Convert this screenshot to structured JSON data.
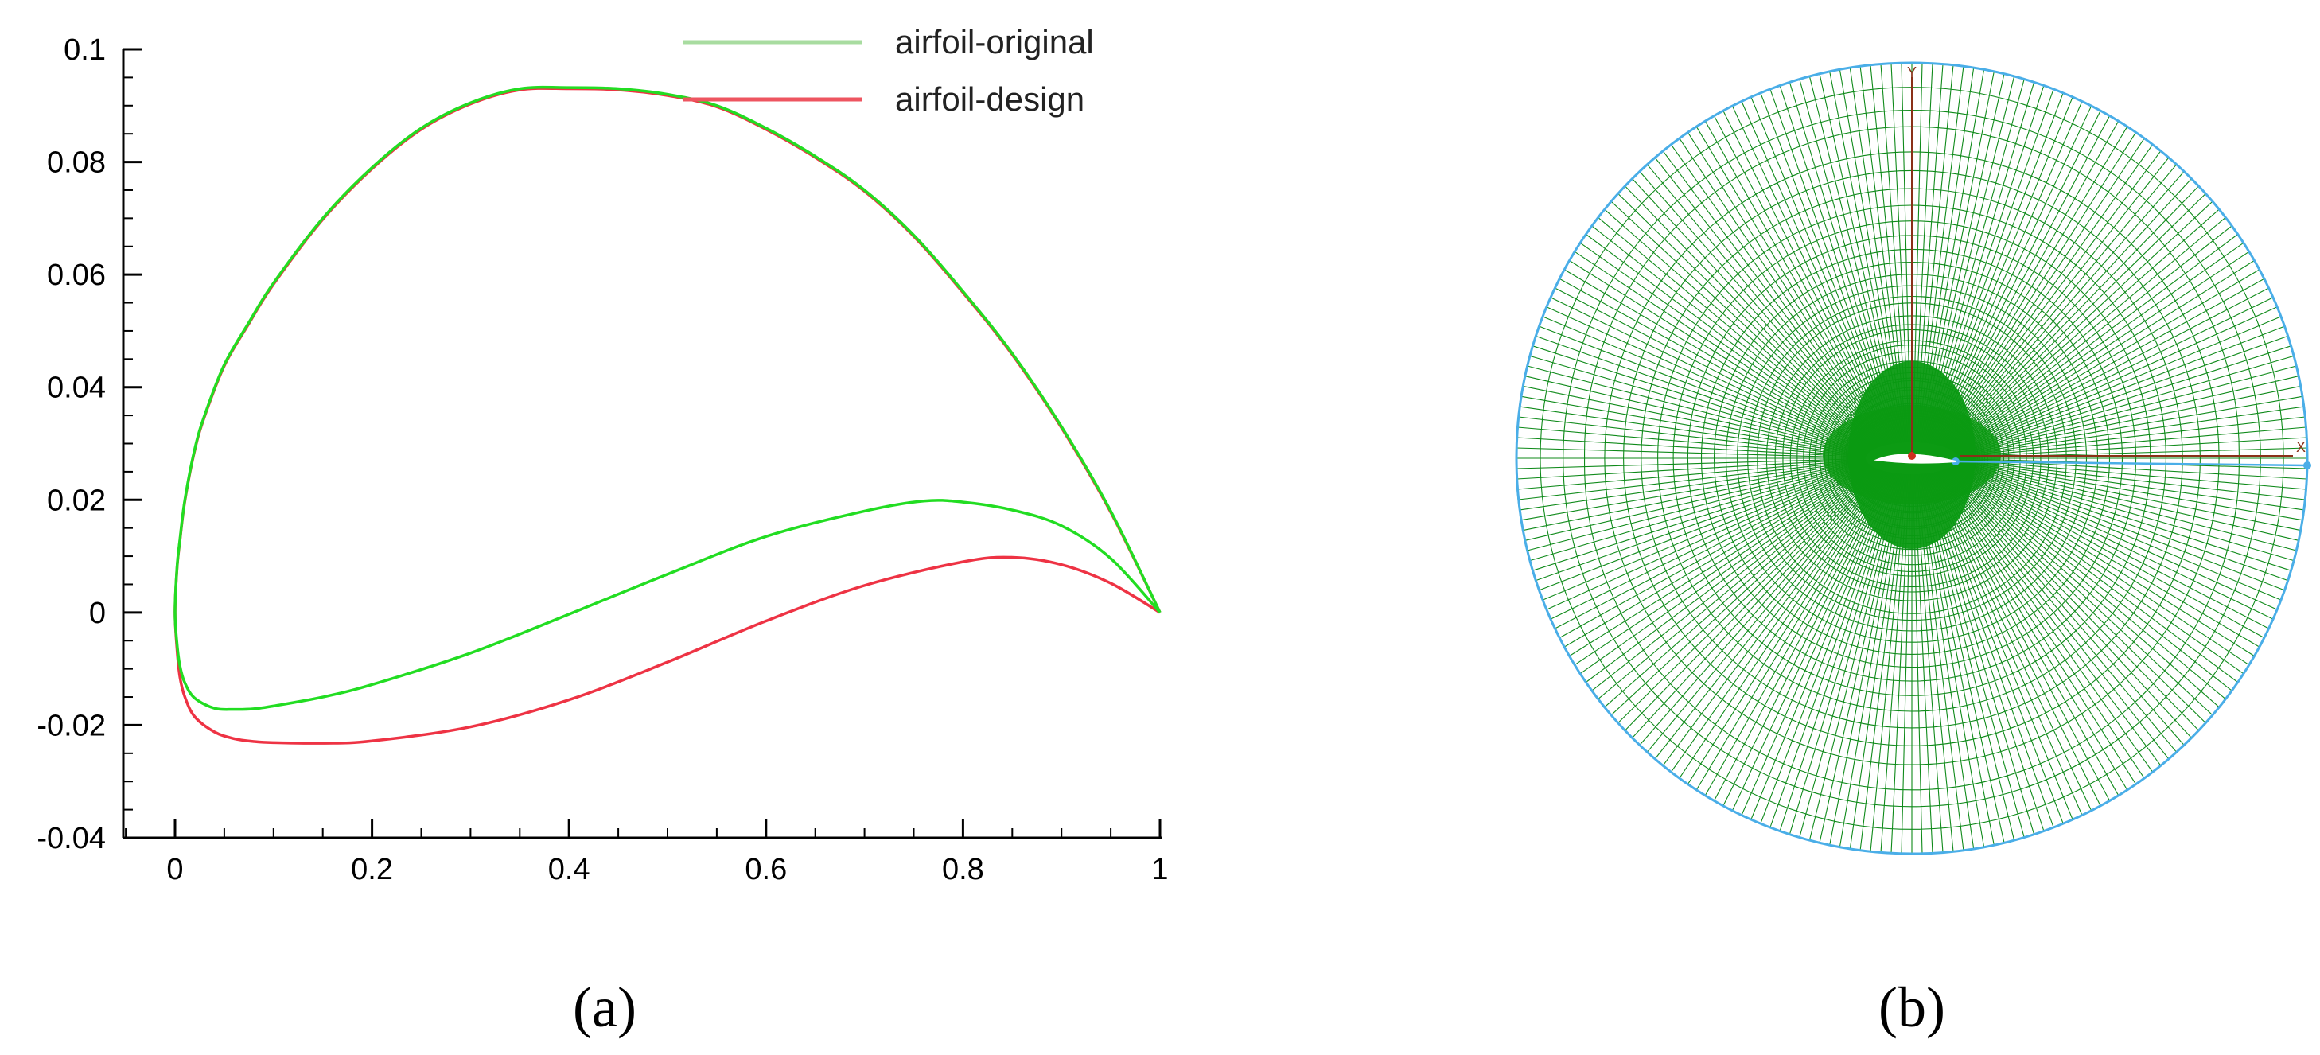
{
  "chart_data": [
    {
      "type": "line",
      "xlim": [
        0,
        1
      ],
      "ylim": [
        -0.04,
        0.1
      ],
      "x_ticks": [
        "0",
        "0.2",
        "0.4",
        "0.6",
        "0.8",
        "1"
      ],
      "y_ticks": [
        "0.1",
        "0.08",
        "0.06",
        "0.04",
        "0.02",
        "0",
        "-0.02",
        "-0.04"
      ],
      "x_tick_values": [
        0,
        0.2,
        0.4,
        0.6,
        0.8,
        1
      ],
      "y_tick_values": [
        0.1,
        0.08,
        0.06,
        0.04,
        0.02,
        0,
        -0.02,
        -0.04
      ],
      "grid": false,
      "legend_position": "top-right",
      "series": [
        {
          "name": "airfoil-original",
          "color": "#22dd22",
          "legend_color": "#a8dca0",
          "x": [
            1.0,
            0.95,
            0.9,
            0.85,
            0.8,
            0.75,
            0.7,
            0.65,
            0.6,
            0.55,
            0.5,
            0.45,
            0.4,
            0.35,
            0.3,
            0.25,
            0.2,
            0.15,
            0.1,
            0.075,
            0.05,
            0.03,
            0.02,
            0.01,
            0.005,
            0.002,
            0.0,
            0.002,
            0.005,
            0.01,
            0.02,
            0.04,
            0.06,
            0.08,
            0.1,
            0.15,
            0.2,
            0.3,
            0.4,
            0.5,
            0.6,
            0.7,
            0.76,
            0.8,
            0.85,
            0.9,
            0.95,
            1.0
          ],
          "y": [
            0.0,
            0.018,
            0.033,
            0.046,
            0.057,
            0.067,
            0.075,
            0.081,
            0.086,
            0.09,
            0.092,
            0.093,
            0.0932,
            0.093,
            0.0905,
            0.086,
            0.079,
            0.07,
            0.0585,
            0.0515,
            0.044,
            0.035,
            0.029,
            0.02,
            0.013,
            0.008,
            0.0,
            -0.0055,
            -0.0095,
            -0.0125,
            -0.0152,
            -0.017,
            -0.0172,
            -0.0171,
            -0.0166,
            -0.015,
            -0.0128,
            -0.0072,
            -0.0003,
            0.0068,
            0.0135,
            0.018,
            0.0198,
            0.0196,
            0.0182,
            0.0154,
            0.0096,
            0.0
          ]
        },
        {
          "name": "airfoil-design",
          "color": "#ee3344",
          "legend_color": "#ee5560",
          "x": [
            1.0,
            0.95,
            0.9,
            0.85,
            0.8,
            0.75,
            0.7,
            0.65,
            0.6,
            0.55,
            0.5,
            0.45,
            0.4,
            0.35,
            0.3,
            0.25,
            0.2,
            0.15,
            0.1,
            0.075,
            0.05,
            0.03,
            0.02,
            0.01,
            0.005,
            0.002,
            0.0,
            0.002,
            0.005,
            0.01,
            0.02,
            0.04,
            0.06,
            0.08,
            0.1,
            0.15,
            0.2,
            0.3,
            0.4,
            0.5,
            0.6,
            0.7,
            0.8,
            0.85,
            0.9,
            0.95,
            1.0
          ],
          "y": [
            0.0,
            0.0178,
            0.0328,
            0.0458,
            0.0568,
            0.0668,
            0.0748,
            0.0808,
            0.0858,
            0.0898,
            0.0918,
            0.0928,
            0.093,
            0.0928,
            0.0903,
            0.0858,
            0.0788,
            0.0698,
            0.0583,
            0.0513,
            0.0438,
            0.0348,
            0.0288,
            0.0198,
            0.0128,
            0.0078,
            0.0,
            -0.0065,
            -0.0115,
            -0.015,
            -0.0185,
            -0.0212,
            -0.0224,
            -0.0229,
            -0.0231,
            -0.0232,
            -0.0228,
            -0.0203,
            -0.0155,
            -0.0088,
            -0.0015,
            0.0048,
            0.009,
            0.0098,
            0.0085,
            0.0052,
            0.0
          ]
        }
      ]
    }
  ],
  "captions": {
    "a": "(a)",
    "b": "(b)"
  },
  "mesh_panel": {
    "axis_label_x": "X",
    "axis_label_y": "Y",
    "colors": {
      "grid": "#0f8a1a",
      "dense_core": "#0a9a12",
      "boundary": "#4aaee8",
      "airfoil": "#ffffff",
      "axis": "#8a3018"
    }
  }
}
